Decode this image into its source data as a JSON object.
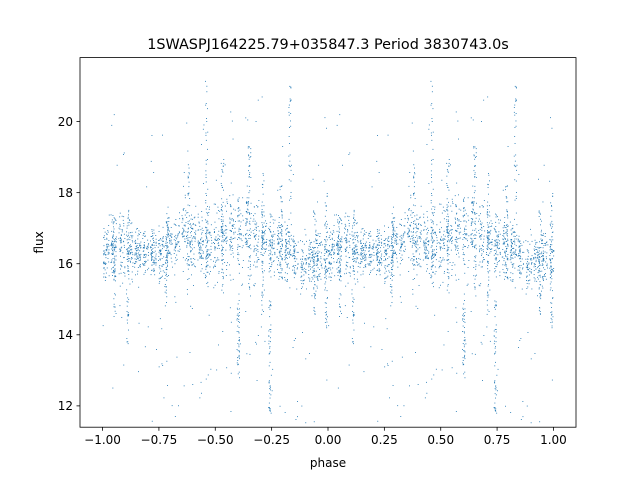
{
  "chart_data": {
    "type": "scatter",
    "title": "1SWASPJ164225.79+035847.3 Period 3830743.0s",
    "xlabel": "phase",
    "ylabel": "flux",
    "xlim": [
      -1.1,
      1.1
    ],
    "ylim": [
      11.4,
      21.8
    ],
    "xticks": [
      -1.0,
      -0.75,
      -0.5,
      -0.25,
      0.0,
      0.25,
      0.5,
      0.75,
      1.0
    ],
    "xtick_labels": [
      "−1.00",
      "−0.75",
      "−0.50",
      "−0.25",
      "0.00",
      "0.25",
      "0.50",
      "0.75",
      "1.00"
    ],
    "yticks": [
      12,
      14,
      16,
      18,
      20
    ],
    "ytick_labels": [
      "12",
      "14",
      "16",
      "18",
      "20"
    ],
    "grid": false,
    "marker_color": "#1f77b4",
    "series": [
      {
        "name": "",
        "profile_x": [
          0.0,
          0.03,
          0.07,
          0.11,
          0.16,
          0.2,
          0.25,
          0.29,
          0.32,
          0.36,
          0.4,
          0.45,
          0.48,
          0.52,
          0.56,
          0.6,
          0.64,
          0.68,
          0.72,
          0.76,
          0.8,
          0.84,
          0.88,
          0.92,
          0.96,
          1.0
        ],
        "profile_center": [
          16.3,
          16.4,
          16.5,
          16.4,
          16.3,
          16.4,
          16.3,
          16.5,
          16.6,
          16.9,
          16.7,
          16.4,
          16.6,
          16.7,
          16.8,
          16.9,
          17.0,
          16.8,
          16.7,
          16.6,
          16.4,
          16.2,
          16.0,
          16.1,
          16.2,
          16.3
        ],
        "profile_spread": [
          0.65,
          0.75,
          0.8,
          0.8,
          0.5,
          0.5,
          0.6,
          0.7,
          0.7,
          0.9,
          0.8,
          0.7,
          0.9,
          0.9,
          0.9,
          0.9,
          1.0,
          0.9,
          0.8,
          0.7,
          0.7,
          0.6,
          0.6,
          0.6,
          0.65,
          0.65
        ],
        "spikes": [
          {
            "phase": 0.46,
            "low": 15.5,
            "high": 21.3
          },
          {
            "phase": 0.38,
            "low": 15.0,
            "high": 19.2
          },
          {
            "phase": 0.53,
            "low": 15.2,
            "high": 19.0
          },
          {
            "phase": 0.65,
            "low": 15.0,
            "high": 19.4
          },
          {
            "phase": 0.71,
            "low": 14.6,
            "high": 18.6
          },
          {
            "phase": 0.11,
            "low": 13.8,
            "high": 17.6
          },
          {
            "phase": 0.05,
            "low": 14.5,
            "high": 17.5
          },
          {
            "phase": 0.28,
            "low": 14.8,
            "high": 17.2
          },
          {
            "phase": 0.74,
            "low": 11.8,
            "high": 15.0
          },
          {
            "phase": 0.6,
            "low": 12.8,
            "high": 15.0
          },
          {
            "phase": 0.83,
            "low": 15.0,
            "high": 21.1
          },
          {
            "phase": 0.94,
            "low": 14.5,
            "high": 17.5
          },
          {
            "phase": 0.99,
            "low": 14.2,
            "high": 18.0
          },
          {
            "phase": 0.79,
            "low": 15.5,
            "high": 18.6
          }
        ]
      }
    ]
  }
}
